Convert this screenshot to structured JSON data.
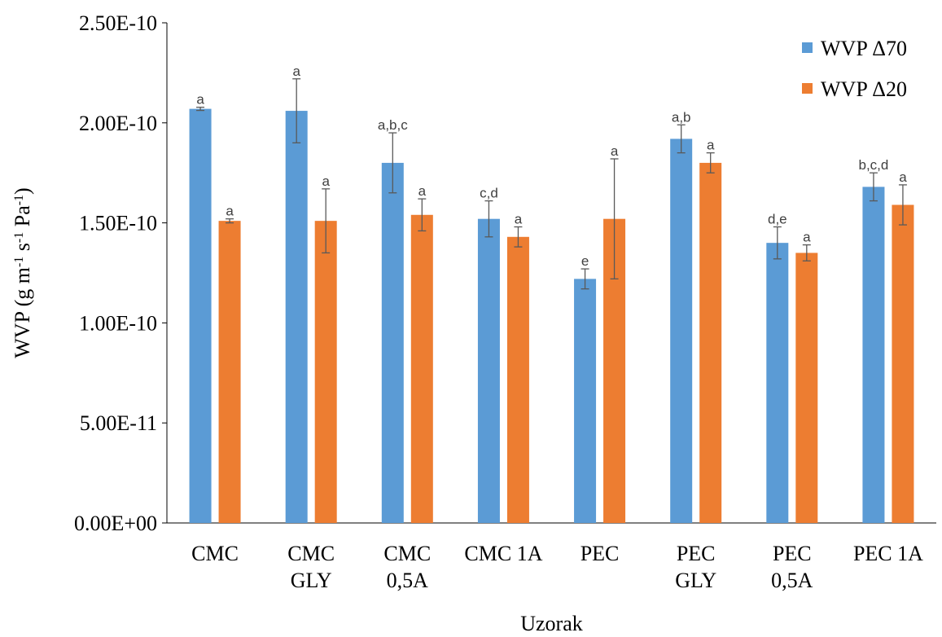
{
  "chart_data": {
    "type": "bar",
    "title": "",
    "xlabel": "Uzorak",
    "ylabel": {
      "parts": [
        {
          "text": "WVP (g m",
          "sup": false
        },
        {
          "text": "-1",
          "sup": true
        },
        {
          "text": " s",
          "sup": false
        },
        {
          "text": "-1",
          "sup": true
        },
        {
          "text": " Pa",
          "sup": false
        },
        {
          "text": "-1",
          "sup": true
        },
        {
          "text": ")",
          "sup": false
        }
      ]
    },
    "ylim": [
      0,
      2.5e-10
    ],
    "yticks": [
      0,
      5e-11,
      1e-10,
      1.5e-10,
      2e-10,
      2.5e-10
    ],
    "ytick_labels": [
      "0.00E+00",
      "5.00E-11",
      "1.00E-10",
      "1.50E-10",
      "2.00E-10",
      "2.50E-10"
    ],
    "grid": false,
    "legend_position": "top-right",
    "categories": [
      [
        "CMC"
      ],
      [
        "CMC",
        "GLY"
      ],
      [
        "CMC",
        "0,5A"
      ],
      [
        "CMC 1A"
      ],
      [
        "PEC"
      ],
      [
        "PEC",
        "GLY"
      ],
      [
        "PEC",
        "0,5A"
      ],
      [
        "PEC 1A"
      ]
    ],
    "series": [
      {
        "name": "WVP Δ70",
        "color": "#5B9BD5",
        "values": [
          2.07e-10,
          2.06e-10,
          1.8e-10,
          1.52e-10,
          1.22e-10,
          1.92e-10,
          1.4e-10,
          1.68e-10
        ],
        "errors": [
          8e-13,
          1.6e-11,
          1.5e-11,
          9e-12,
          5e-12,
          7e-12,
          8e-12,
          7e-12
        ],
        "sig_labels": [
          "a",
          "a",
          "a,b,c",
          "c,d",
          "e",
          "a,b",
          "d,e",
          "b,c,d"
        ]
      },
      {
        "name": "WVP Δ20",
        "color": "#ED7D31",
        "values": [
          1.51e-10,
          1.51e-10,
          1.54e-10,
          1.43e-10,
          1.52e-10,
          1.8e-10,
          1.35e-10,
          1.59e-10
        ],
        "errors": [
          1e-12,
          1.6e-11,
          8e-12,
          5e-12,
          3e-11,
          5e-12,
          4e-12,
          1e-11
        ],
        "sig_labels": [
          "a",
          "a",
          "a",
          "a",
          "a",
          "a",
          "a",
          "a"
        ]
      }
    ]
  }
}
